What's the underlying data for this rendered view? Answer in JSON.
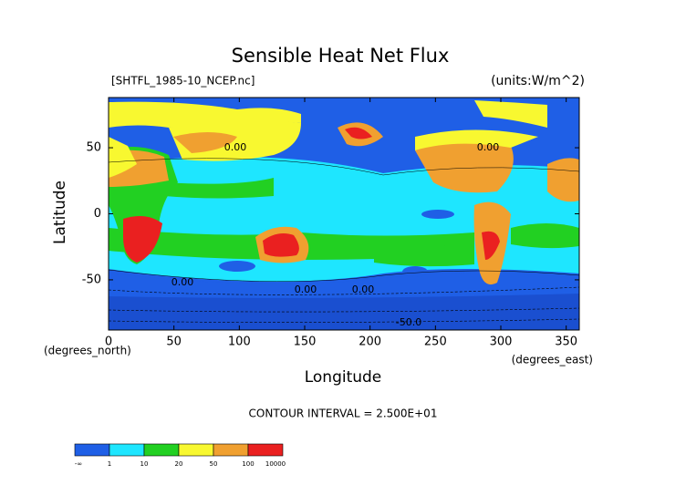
{
  "chart_data": {
    "type": "contour",
    "title": "Sensible Heat Net Flux",
    "source": "[SHTFL_1985-10_NCEP.nc]",
    "units": "(units:W/m^2)",
    "x_label": "Longitude",
    "y_label": "Latitude",
    "x_unit": "(degrees_east)",
    "y_unit": "(degrees_north)",
    "xlim": [
      0,
      360
    ],
    "ylim": [
      -88,
      88
    ],
    "xticks": [
      0,
      50,
      100,
      150,
      200,
      250,
      300,
      350
    ],
    "yticks": [
      -50,
      0,
      50
    ],
    "contour_interval": "CONTOUR INTERVAL = 2.500E+01",
    "contour_labels": [
      "0.00",
      "0.00",
      "0.00",
      "0.00",
      "0.00",
      "-50.0"
    ],
    "colorbar": {
      "levels": [
        "-∞",
        1,
        10,
        20,
        50,
        100,
        10000
      ],
      "colors": [
        "#1f5fe6",
        "#1ee6ff",
        "#22d022",
        "#f8f830",
        "#f0a030",
        "#ea2020"
      ]
    }
  }
}
